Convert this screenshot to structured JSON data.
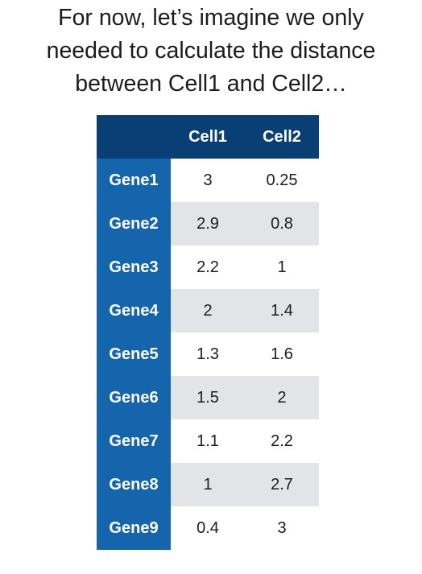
{
  "title": {
    "lines": [
      "For now, let’s imagine we only",
      "needed to calculate the distance",
      "between Cell1 and Cell2…"
    ]
  },
  "table": {
    "columns": [
      "Cell1",
      "Cell2"
    ],
    "rows": [
      {
        "gene": "Gene1",
        "cell1": "3",
        "cell2": "0.25"
      },
      {
        "gene": "Gene2",
        "cell1": "2.9",
        "cell2": "0.8"
      },
      {
        "gene": "Gene3",
        "cell1": "2.2",
        "cell2": "1"
      },
      {
        "gene": "Gene4",
        "cell1": "2",
        "cell2": "1.4"
      },
      {
        "gene": "Gene5",
        "cell1": "1.3",
        "cell2": "1.6"
      },
      {
        "gene": "Gene6",
        "cell1": "1.5",
        "cell2": "2"
      },
      {
        "gene": "Gene7",
        "cell1": "1.1",
        "cell2": "2.2"
      },
      {
        "gene": "Gene8",
        "cell1": "1",
        "cell2": "2.7"
      },
      {
        "gene": "Gene9",
        "cell1": "0.4",
        "cell2": "3"
      }
    ]
  },
  "colors": {
    "header_bg": "#0a3f76",
    "row_header_bg": "#1565ad",
    "stripe_bg": "#e3e4e8",
    "text": "#1c1c1c"
  }
}
